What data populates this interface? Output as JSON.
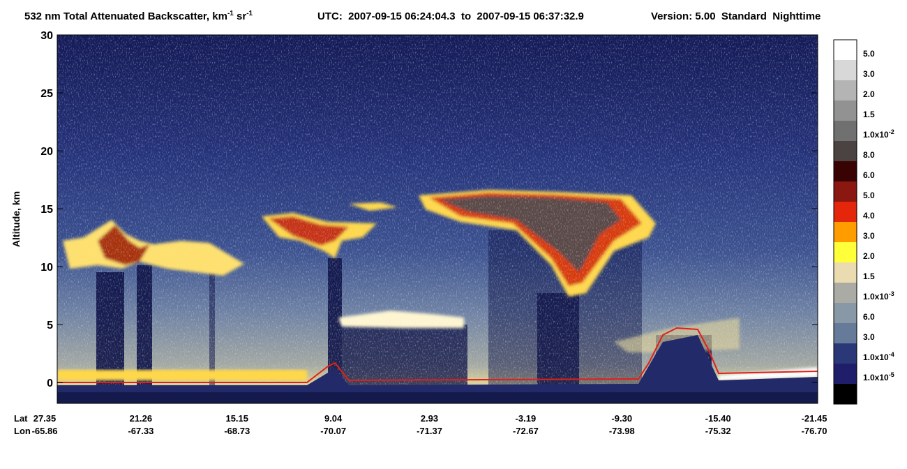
{
  "chart_data": {
    "type": "heatmap",
    "title": {
      "main": "532 nm Total Attenuated Backscatter, km",
      "sup1": "-1",
      "unit2": " sr",
      "sup2": "-1",
      "utc": "UTC:  2007-09-15 06:24:04.3  to  2007-09-15 06:37:32.9",
      "version": "Version: 5.00  Standard  Nighttime"
    },
    "y_label": "Altitude, km",
    "ylim": [
      -1.8,
      30
    ],
    "yticks": [
      0,
      5,
      10,
      15,
      20,
      25,
      30
    ],
    "x_rows": [
      {
        "name": "Lat",
        "labels": [
          "27.35",
          "21.26",
          "15.15",
          "9.04",
          "2.93",
          "-3.19",
          "-9.30",
          "-15.40",
          "-21.45"
        ]
      },
      {
        "name": "Lon",
        "labels": [
          "-65.86",
          "-67.33",
          "-68.73",
          "-70.07",
          "-71.37",
          "-72.67",
          "-73.98",
          "-75.32",
          "-76.70"
        ]
      }
    ],
    "colorbar": {
      "colors": [
        "#ffffff",
        "#d8d8d8",
        "#b4b4b4",
        "#929292",
        "#707070",
        "#4b4341",
        "#3a0303",
        "#8a1710",
        "#e4260a",
        "#ff9c00",
        "#ffff3a",
        "#eadcb0",
        "#a9aba4",
        "#8898a6",
        "#667b9a",
        "#2a3878",
        "#1e1e6a",
        "#000000"
      ],
      "labels": [
        {
          "text": "5.0"
        },
        {
          "text": "3.0"
        },
        {
          "text": "2.0"
        },
        {
          "text": "1.5"
        },
        {
          "text": "1.0x10",
          "exp": "-2"
        },
        {
          "text": "8.0"
        },
        {
          "text": "6.0"
        },
        {
          "text": "5.0"
        },
        {
          "text": "4.0"
        },
        {
          "text": "3.0"
        },
        {
          "text": "2.0"
        },
        {
          "text": "1.5"
        },
        {
          "text": "1.0x10",
          "exp": "-3"
        },
        {
          "text": "6.0"
        },
        {
          "text": "3.0"
        },
        {
          "text": "1.0x10",
          "exp": "-4"
        },
        {
          "text": "1.0x10",
          "exp": "-5"
        }
      ]
    }
  }
}
